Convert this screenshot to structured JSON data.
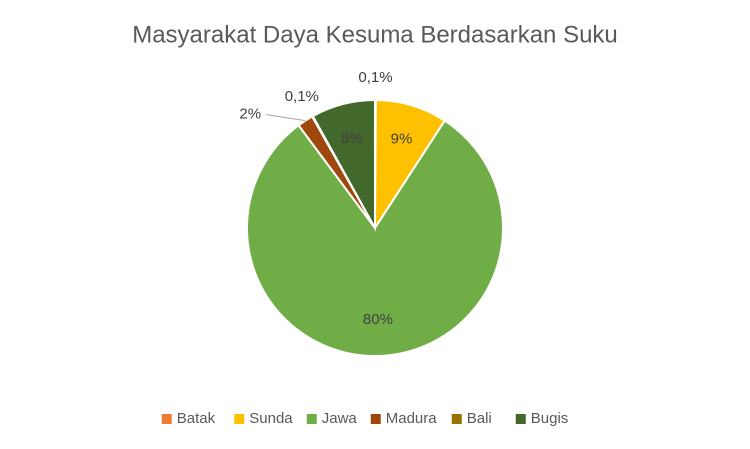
{
  "chart_data": {
    "type": "pie",
    "title": "Masyarakat Daya Kesuma Berdasarkan Suku",
    "categories": [
      "Batak",
      "Sunda",
      "Jawa",
      "Madura",
      "Bali",
      "Bugis"
    ],
    "values": [
      0.1,
      9,
      80,
      2,
      0.1,
      8
    ],
    "value_labels": [
      "0,1%",
      "9%",
      "80%",
      "2%",
      "0,1%",
      "8%"
    ],
    "colors": [
      "#ed7d31",
      "#ffc000",
      "#70ad47",
      "#9e480e",
      "#997300",
      "#43682b"
    ],
    "legend": "bottom"
  }
}
